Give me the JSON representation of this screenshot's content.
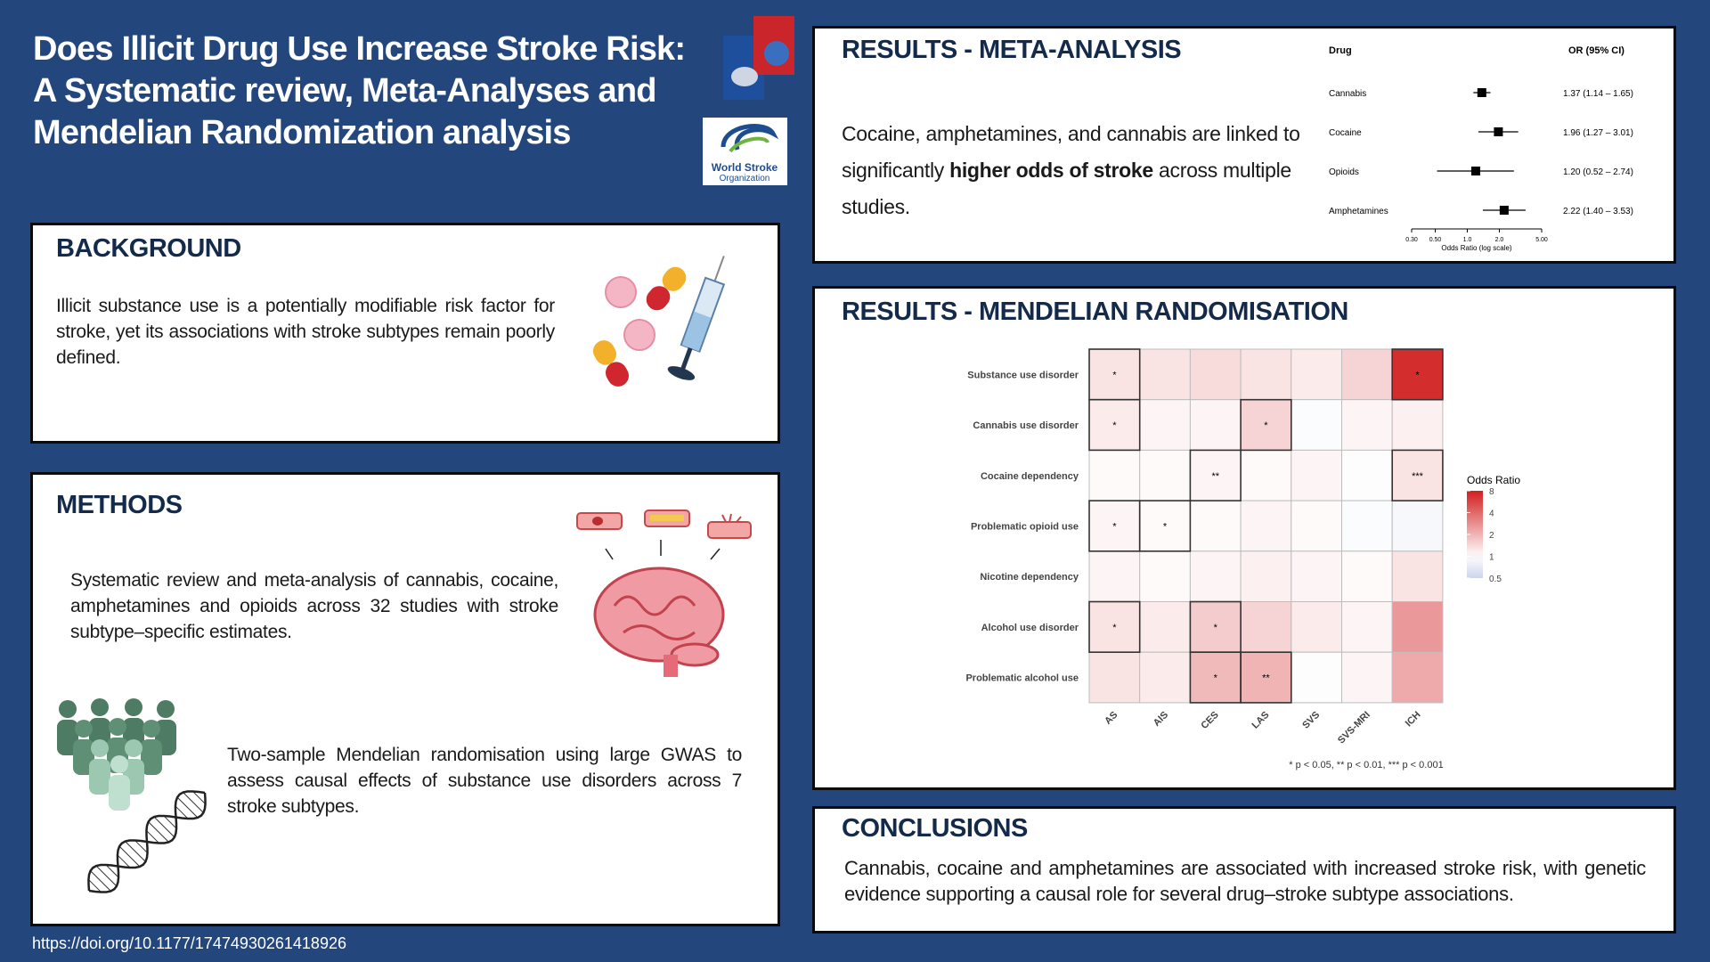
{
  "header": {
    "title_lines": [
      "Does Illicit Drug Use Increase Stroke Risk:",
      "A Systematic review, Meta-Analyses and",
      "Mendelian Randomization analysis"
    ],
    "logo_text": [
      "World Stroke",
      "Organization"
    ]
  },
  "background": {
    "heading": "BACKGROUND",
    "text": "Illicit substance use is a potentially modifiable risk factor for stroke, yet its associations with stroke subtypes remain poorly defined."
  },
  "methods": {
    "heading": "METHODS",
    "paragraphs": [
      "Systematic review and meta-analysis of cannabis, cocaine, amphetamines and opioids across 32 studies with stroke subtype–specific estimates.",
      "Two-sample Mendelian randomisation using large GWAS to assess causal effects of substance use disorders across 7 stroke subtypes."
    ]
  },
  "results_meta": {
    "heading": "RESULTS - META-ANALYSIS",
    "text": {
      "before": "Cocaine, amphetamines, and cannabis are linked to significantly ",
      "bold": "higher odds of stroke",
      "after": " across multiple studies."
    },
    "forest": {
      "column_headers": [
        "Drug",
        "OR (95% CI)"
      ],
      "rows": [
        {
          "drug": "Cannabis",
          "or": 1.37,
          "lo": 1.14,
          "hi": 1.65,
          "label": "1.37 (1.14 – 1.65)"
        },
        {
          "drug": "Cocaine",
          "or": 1.96,
          "lo": 1.27,
          "hi": 3.01,
          "label": "1.96 (1.27 – 3.01)"
        },
        {
          "drug": "Opioids",
          "or": 1.2,
          "lo": 0.52,
          "hi": 2.74,
          "label": "1.20 (0.52 – 2.74)"
        },
        {
          "drug": "Amphetamines",
          "or": 2.22,
          "lo": 1.4,
          "hi": 3.53,
          "label": "2.22 (1.40 – 3.53)"
        }
      ],
      "xlim": [
        0.3,
        5
      ],
      "log_scale": true,
      "xticks": [
        {
          "value": 0.3,
          "label": "0.30"
        },
        {
          "value": 0.5,
          "label": "0.50"
        },
        {
          "value": 1,
          "label": "1.0"
        },
        {
          "value": 2,
          "label": "2.0"
        },
        {
          "value": 5,
          "label": "5.00"
        }
      ],
      "axis_label": "Odds Ratio (log scale)",
      "color": "#000000"
    }
  },
  "results_mr": {
    "heading": "RESULTS - MENDELIAN RANDOMISATION",
    "heatmap": {
      "rows": [
        "Substance use disorder",
        "Cannabis use disorder",
        "Cocaine dependency",
        "Problematic opioid use",
        "Nicotine dependency",
        "Alcohol use disorder",
        "Problematic alcohol use"
      ],
      "columns": [
        "AS",
        "AIS",
        "CES",
        "LAS",
        "SVS",
        "SVS-MRI",
        "ICH"
      ],
      "values": [
        [
          1.3,
          1.3,
          1.4,
          1.3,
          1.2,
          1.5,
          7.0
        ],
        [
          1.2,
          1.1,
          1.1,
          1.5,
          0.95,
          1.1,
          1.15
        ],
        [
          1.05,
          1.05,
          1.1,
          1.05,
          1.1,
          0.97,
          1.3
        ],
        [
          1.1,
          1.05,
          1.05,
          1.1,
          1.05,
          0.95,
          0.9
        ],
        [
          1.1,
          1.05,
          1.1,
          1.15,
          1.1,
          1.05,
          1.3
        ],
        [
          1.3,
          1.2,
          1.6,
          1.5,
          1.2,
          1.1,
          2.6
        ],
        [
          1.3,
          1.2,
          1.9,
          2.0,
          0.97,
          1.1,
          2.2
        ]
      ],
      "stars": [
        [
          "*",
          null,
          null,
          null,
          null,
          null,
          "*"
        ],
        [
          "*",
          null,
          null,
          "*",
          null,
          null,
          null
        ],
        [
          null,
          null,
          "**",
          null,
          null,
          null,
          "***"
        ],
        [
          "*",
          "*",
          null,
          null,
          null,
          null,
          null
        ],
        [
          null,
          null,
          null,
          null,
          null,
          null,
          null
        ],
        [
          "*",
          null,
          "*",
          null,
          null,
          null,
          null
        ],
        [
          null,
          null,
          "*",
          "**",
          null,
          null,
          null
        ]
      ],
      "legend_title": "Odds Ratio",
      "legend_ticks": [
        8,
        4,
        2,
        1,
        0.5
      ],
      "color_range": [
        0.5,
        8
      ],
      "log_scale": true,
      "low_color": "#cdd4ec",
      "mid_color": "#ffffff",
      "high_color": "#d11f20",
      "footnote": "* p < 0.05, ** p < 0.01, *** p < 0.001"
    }
  },
  "conclusions": {
    "heading": "CONCLUSIONS",
    "text": "Cannabis, cocaine and amphetamines are associated with increased stroke risk, with genetic evidence supporting a causal role for several drug–stroke subtype associations."
  },
  "doi": "https://doi.org/10.1177/17474930261418926"
}
